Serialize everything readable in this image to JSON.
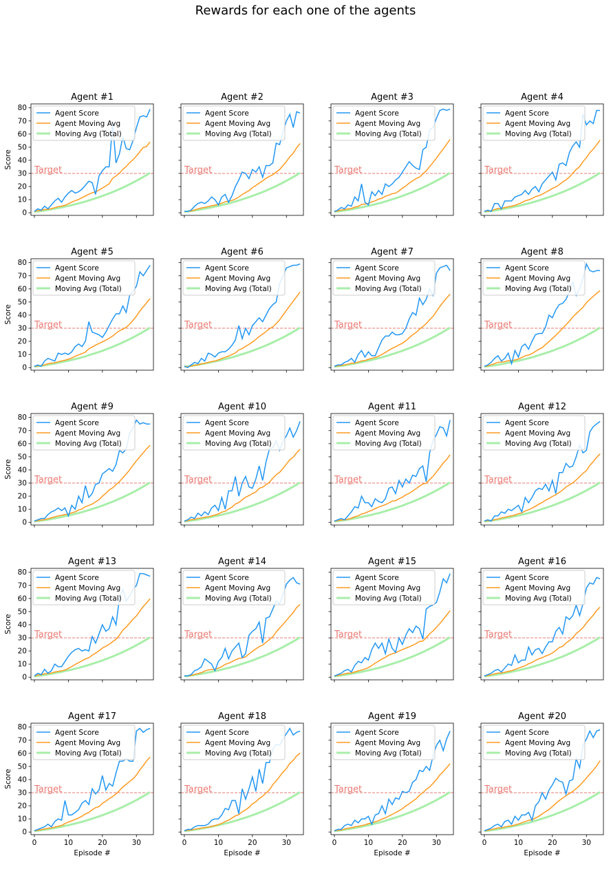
{
  "chart_data": {
    "type": "line",
    "title": "Rewards for each one of the agents",
    "xlabel": "Episode #",
    "ylabel": "Score",
    "xlim": [
      -1,
      35
    ],
    "ylim": [
      -2,
      83
    ],
    "x_ticks": [
      0,
      10,
      20,
      30
    ],
    "y_ticks": [
      0,
      10,
      20,
      30,
      40,
      50,
      60,
      70,
      80
    ],
    "target": {
      "label": "Target",
      "value": 30
    },
    "legend_position": "top-left",
    "legend_labels": [
      "Agent Score",
      "Agent Moving Avg",
      "Moving Avg (Total)"
    ],
    "colors": {
      "score": "#2196f3",
      "agent_avg": "#ff9a1f",
      "total_avg": "#a8eea9",
      "target": "#ea7a73"
    },
    "episodes": [
      0,
      1,
      2,
      3,
      4,
      5,
      6,
      7,
      8,
      9,
      10,
      11,
      12,
      13,
      14,
      15,
      16,
      17,
      18,
      19,
      20,
      21,
      22,
      23,
      24,
      25,
      26,
      27,
      28,
      29,
      30,
      31,
      32,
      33,
      34
    ],
    "total_moving_avg": [
      0.8,
      1.0,
      1.3,
      1.7,
      2.1,
      2.6,
      3.1,
      3.6,
      4.1,
      4.7,
      5.2,
      5.8,
      6.5,
      7.1,
      7.8,
      8.6,
      9.4,
      10.2,
      11.0,
      11.9,
      12.8,
      13.8,
      14.8,
      15.8,
      16.9,
      18.0,
      19.2,
      20.4,
      21.7,
      23.0,
      24.4,
      25.8,
      27.3,
      28.8,
      30.4
    ],
    "agents": [
      {
        "title": "Agent #1",
        "scores": [
          1,
          3,
          2,
          5,
          3,
          6,
          9,
          11,
          8,
          12,
          15,
          17,
          15,
          16,
          18,
          21,
          24,
          23,
          14,
          28,
          32,
          35,
          35,
          68,
          38,
          45,
          58,
          49,
          48,
          55,
          65,
          73,
          74,
          73,
          79
        ]
      },
      {
        "title": "Agent #2",
        "scores": [
          1,
          1,
          2,
          5,
          7,
          8,
          7,
          9,
          12,
          10,
          6,
          12,
          14,
          8,
          13,
          20,
          25,
          31,
          30,
          26,
          33,
          31,
          35,
          27,
          36,
          36,
          38,
          53,
          52,
          62,
          70,
          75,
          65,
          77,
          76
        ]
      },
      {
        "title": "Agent #3",
        "scores": [
          1,
          2,
          4,
          3,
          6,
          5,
          12,
          9,
          22,
          8,
          6,
          16,
          13,
          17,
          14,
          22,
          20,
          22,
          25,
          27,
          31,
          35,
          39,
          36,
          34,
          33,
          48,
          50,
          63,
          65,
          72,
          78,
          79,
          78,
          79
        ]
      },
      {
        "title": "Agent #4",
        "scores": [
          1,
          2,
          1,
          7,
          7,
          3,
          9,
          9,
          9,
          12,
          13,
          14,
          17,
          14,
          18,
          20,
          16,
          22,
          25,
          28,
          31,
          25,
          37,
          38,
          36,
          46,
          51,
          54,
          50,
          75,
          67,
          70,
          68,
          78,
          78
        ]
      },
      {
        "title": "Agent #5",
        "scores": [
          1,
          2,
          1,
          5,
          7,
          6,
          5,
          11,
          10,
          11,
          10,
          12,
          16,
          18,
          16,
          20,
          35,
          27,
          26,
          25,
          23,
          27,
          32,
          37,
          41,
          41,
          47,
          42,
          55,
          58,
          62,
          73,
          70,
          74,
          78
        ]
      },
      {
        "title": "Agent #6",
        "scores": [
          1,
          0,
          2,
          4,
          3,
          7,
          5,
          11,
          10,
          8,
          11,
          12,
          12,
          14,
          17,
          21,
          32,
          22,
          30,
          25,
          32,
          35,
          38,
          35,
          40,
          45,
          48,
          50,
          64,
          70,
          76,
          77,
          78,
          78,
          79
        ]
      },
      {
        "title": "Agent #7",
        "scores": [
          1,
          2,
          2,
          4,
          5,
          7,
          4,
          10,
          13,
          8,
          12,
          9,
          9,
          15,
          21,
          24,
          24,
          27,
          25,
          25,
          26,
          30,
          37,
          42,
          40,
          53,
          48,
          52,
          60,
          55,
          72,
          76,
          77,
          78,
          74
        ]
      },
      {
        "title": "Agent #8",
        "scores": [
          1,
          2,
          4,
          7,
          9,
          5,
          7,
          11,
          3,
          13,
          8,
          16,
          18,
          14,
          20,
          25,
          26,
          26,
          31,
          40,
          38,
          44,
          48,
          49,
          52,
          58,
          65,
          55,
          60,
          68,
          79,
          74,
          73,
          74,
          74
        ]
      },
      {
        "title": "Agent #9",
        "scores": [
          1,
          2,
          3,
          3,
          6,
          8,
          9,
          11,
          9,
          11,
          5,
          13,
          10,
          20,
          15,
          28,
          19,
          22,
          29,
          30,
          37,
          39,
          41,
          39,
          44,
          55,
          53,
          56,
          68,
          72,
          78,
          75,
          76,
          75,
          75
        ]
      },
      {
        "title": "Agent #10",
        "scores": [
          1,
          2,
          4,
          3,
          7,
          5,
          8,
          6,
          11,
          13,
          9,
          19,
          10,
          24,
          24,
          35,
          20,
          30,
          35,
          27,
          26,
          33,
          43,
          32,
          46,
          56,
          57,
          62,
          55,
          62,
          66,
          72,
          65,
          70,
          77
        ]
      },
      {
        "title": "Agent #11",
        "scores": [
          1,
          2,
          3,
          2,
          5,
          8,
          12,
          11,
          20,
          15,
          15,
          12,
          18,
          16,
          15,
          18,
          26,
          27,
          22,
          32,
          27,
          33,
          30,
          36,
          35,
          41,
          43,
          31,
          53,
          62,
          67,
          73,
          72,
          66,
          78
        ]
      },
      {
        "title": "Agent #12",
        "scores": [
          1,
          2,
          1,
          5,
          5,
          8,
          7,
          10,
          9,
          11,
          13,
          8,
          19,
          15,
          19,
          24,
          26,
          25,
          29,
          24,
          32,
          22,
          38,
          38,
          45,
          42,
          43,
          50,
          59,
          53,
          55,
          69,
          73,
          75,
          77
        ]
      },
      {
        "title": "Agent #13",
        "scores": [
          1,
          3,
          2,
          6,
          3,
          5,
          10,
          8,
          8,
          12,
          16,
          19,
          21,
          22,
          20,
          21,
          20,
          31,
          26,
          33,
          40,
          35,
          37,
          46,
          40,
          60,
          67,
          58,
          62,
          67,
          70,
          79,
          79,
          78,
          77
        ]
      },
      {
        "title": "Agent #14",
        "scores": [
          1,
          1,
          2,
          5,
          6,
          8,
          14,
          12,
          10,
          5,
          12,
          15,
          22,
          14,
          20,
          23,
          26,
          15,
          18,
          32,
          35,
          37,
          42,
          26,
          45,
          46,
          52,
          58,
          56,
          63,
          71,
          74,
          76,
          72,
          71
        ]
      },
      {
        "title": "Agent #15",
        "scores": [
          1,
          2,
          3,
          5,
          6,
          4,
          9,
          12,
          11,
          15,
          13,
          21,
          26,
          22,
          26,
          18,
          29,
          22,
          19,
          30,
          25,
          32,
          37,
          34,
          39,
          37,
          29,
          52,
          54,
          55,
          57,
          65,
          75,
          72,
          79
        ]
      },
      {
        "title": "Agent #16",
        "scores": [
          1,
          2,
          3,
          5,
          6,
          4,
          7,
          10,
          9,
          17,
          11,
          13,
          13,
          23,
          17,
          21,
          22,
          18,
          23,
          27,
          27,
          35,
          38,
          33,
          46,
          44,
          47,
          55,
          47,
          56,
          68,
          72,
          71,
          76,
          75
        ]
      },
      {
        "title": "Agent #17",
        "scores": [
          1,
          2,
          3,
          4,
          6,
          4,
          8,
          10,
          9,
          24,
          13,
          13,
          15,
          17,
          22,
          24,
          21,
          33,
          29,
          32,
          43,
          32,
          37,
          35,
          45,
          54,
          54,
          56,
          54,
          54,
          77,
          79,
          76,
          78,
          79
        ]
      },
      {
        "title": "Agent #18",
        "scores": [
          1,
          2,
          2,
          4,
          5,
          5,
          5,
          6,
          9,
          10,
          10,
          13,
          18,
          17,
          24,
          24,
          14,
          33,
          25,
          33,
          42,
          31,
          48,
          37,
          53,
          53,
          63,
          67,
          66,
          71,
          75,
          79,
          74,
          76,
          77
        ]
      },
      {
        "title": "Agent #19",
        "scores": [
          1,
          2,
          2,
          5,
          6,
          5,
          9,
          7,
          10,
          10,
          12,
          6,
          13,
          14,
          20,
          14,
          25,
          21,
          26,
          25,
          31,
          30,
          31,
          38,
          40,
          47,
          46,
          50,
          47,
          58,
          66,
          70,
          62,
          71,
          77
        ]
      },
      {
        "title": "Agent #20",
        "scores": [
          1,
          2,
          3,
          5,
          6,
          4,
          8,
          9,
          6,
          12,
          9,
          13,
          13,
          15,
          9,
          20,
          23,
          30,
          25,
          32,
          36,
          41,
          39,
          38,
          29,
          39,
          40,
          56,
          49,
          66,
          71,
          77,
          72,
          77,
          78
        ]
      }
    ]
  }
}
